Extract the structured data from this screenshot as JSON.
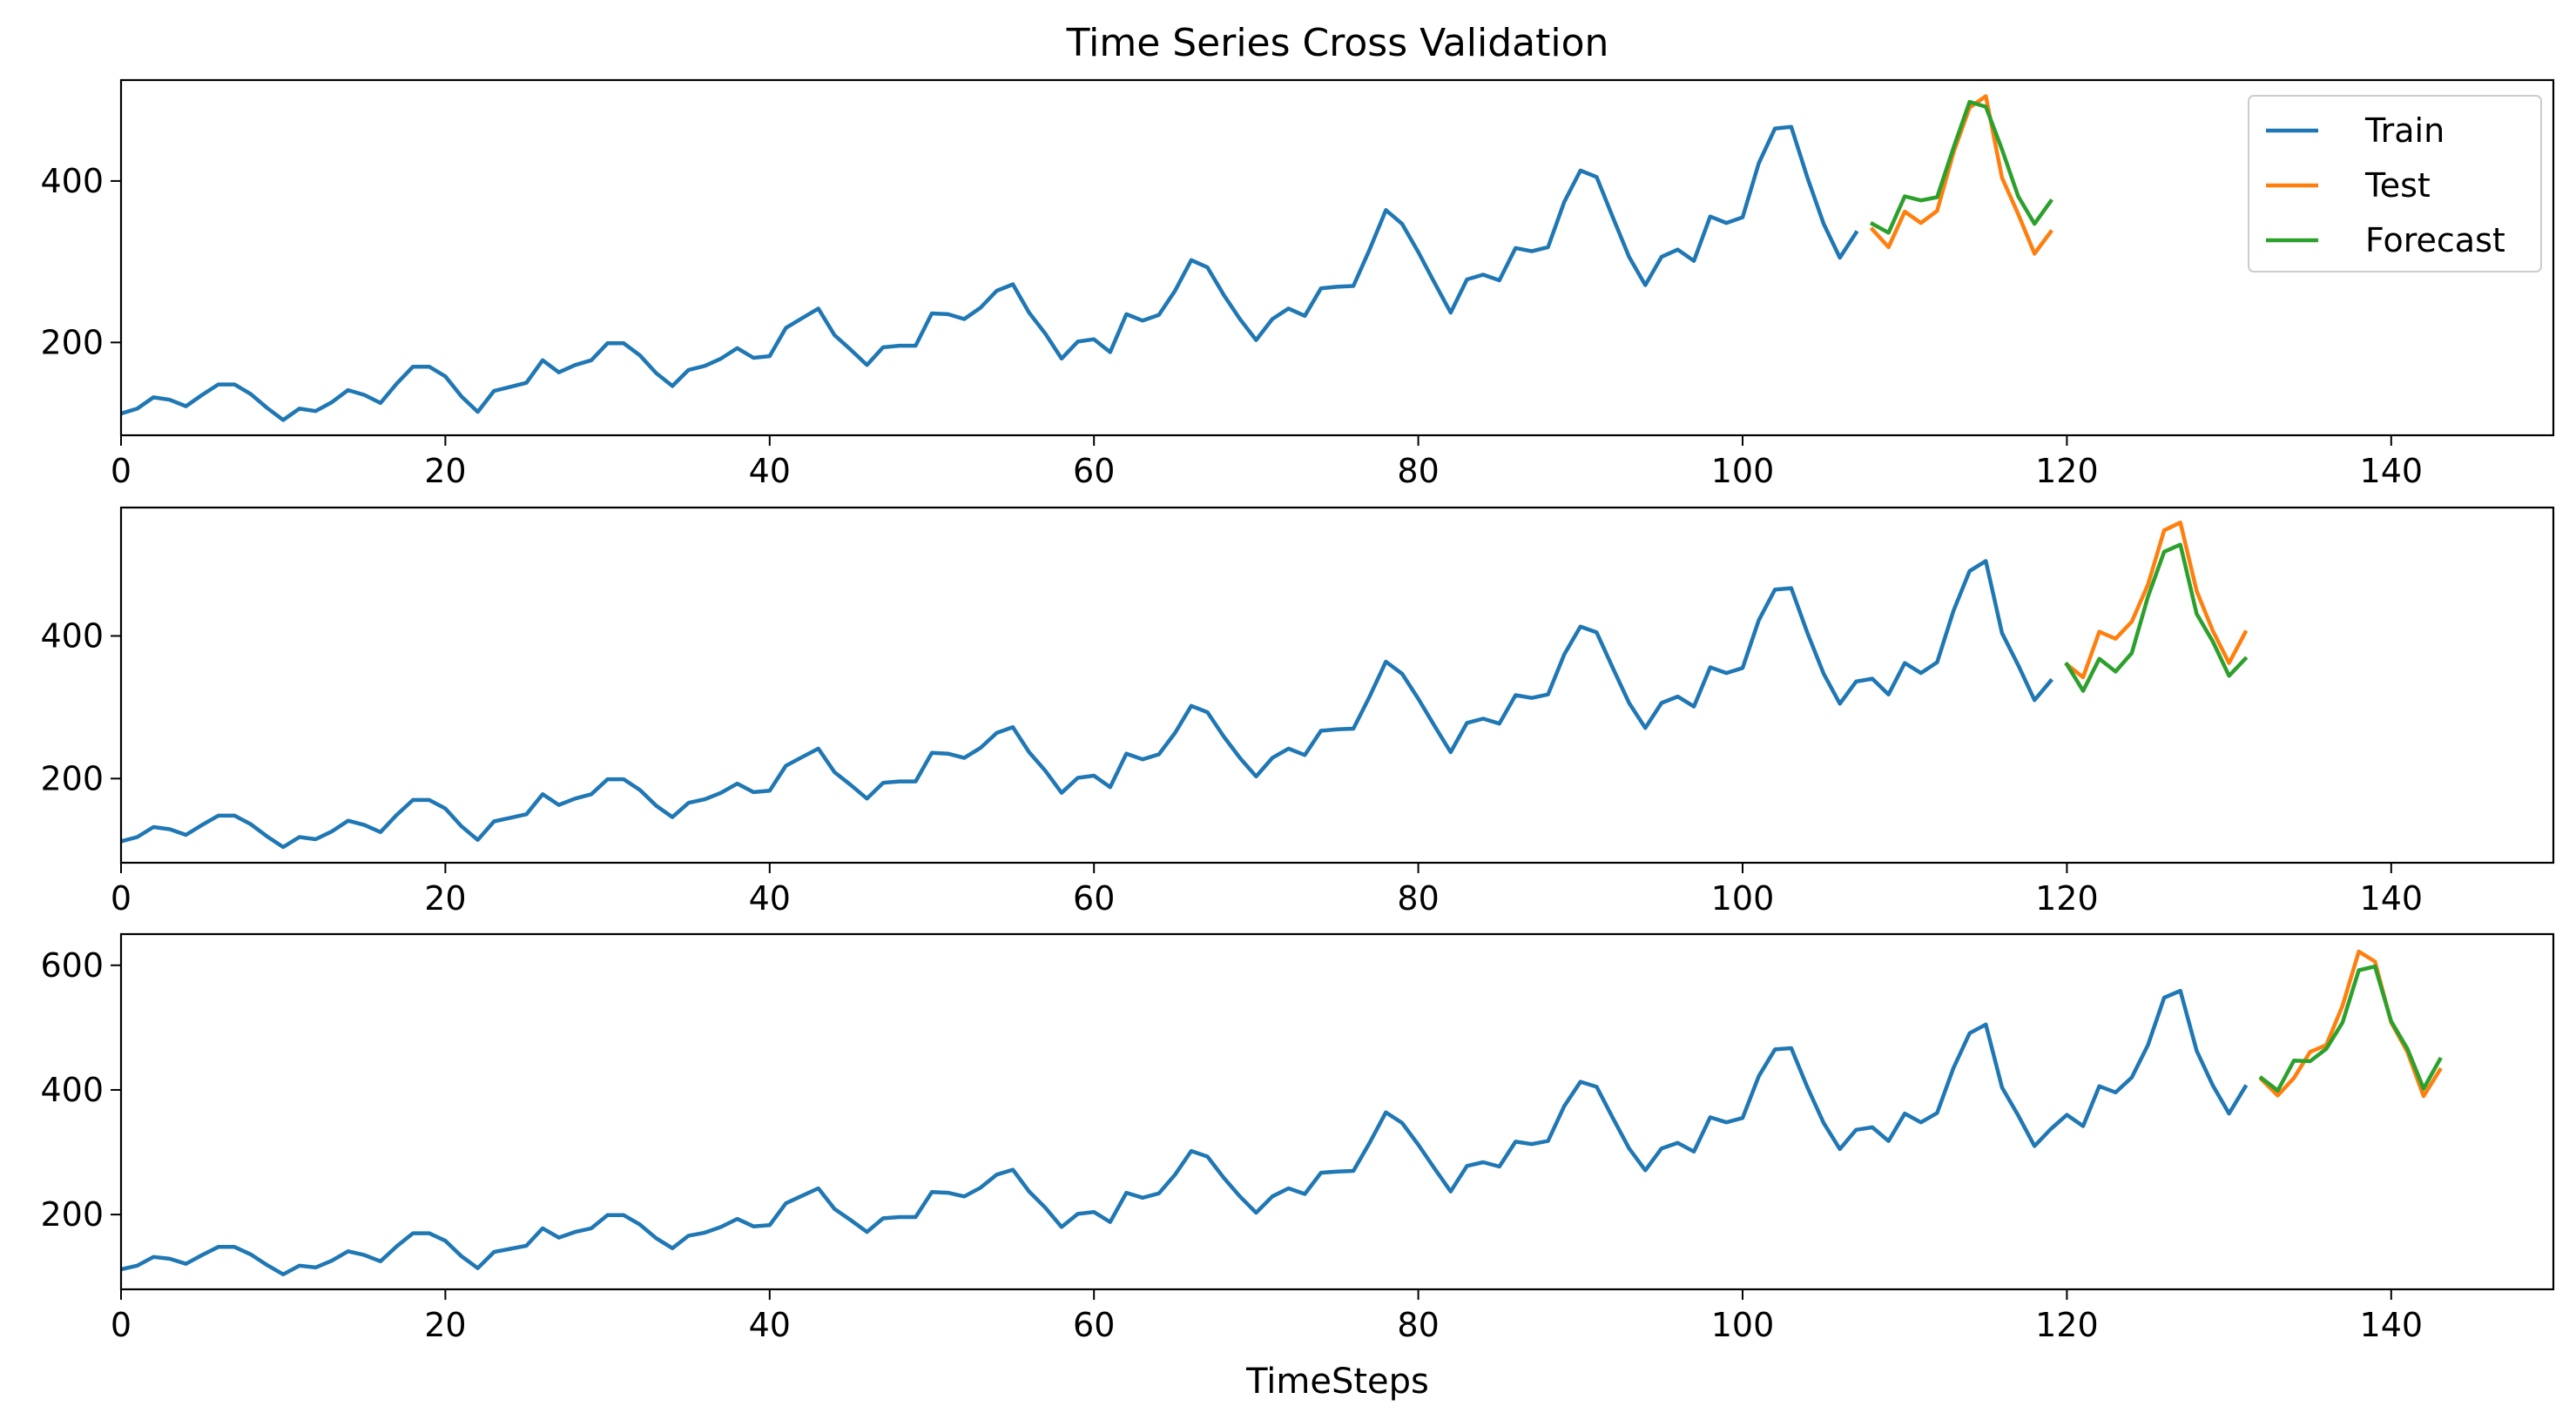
{
  "chart_data": {
    "type": "line",
    "title": "Time Series Cross Validation",
    "xlabel": "TimeSteps",
    "ylabel": "",
    "legend": {
      "placement": "top-right",
      "entries": [
        "Train",
        "Test",
        "Forecast"
      ]
    },
    "colors": {
      "Train": "#1f77b4",
      "Test": "#ff7f0e",
      "Forecast": "#2ca02c"
    },
    "xlim": [
      0,
      150
    ],
    "xticks": [
      0,
      20,
      40,
      60,
      80,
      100,
      120,
      140
    ],
    "grid": false,
    "values": [
      112,
      118,
      132,
      129,
      121,
      135,
      148,
      148,
      136,
      119,
      104,
      118,
      115,
      126,
      141,
      135,
      125,
      149,
      170,
      170,
      158,
      133,
      114,
      140,
      145,
      150,
      178,
      163,
      172,
      178,
      199,
      199,
      184,
      162,
      146,
      166,
      171,
      180,
      193,
      181,
      183,
      218,
      230,
      242,
      209,
      191,
      172,
      194,
      196,
      196,
      236,
      235,
      229,
      243,
      264,
      272,
      237,
      211,
      180,
      201,
      204,
      188,
      235,
      227,
      234,
      264,
      302,
      293,
      259,
      229,
      203,
      229,
      242,
      233,
      267,
      269,
      270,
      315,
      364,
      347,
      312,
      274,
      237,
      278,
      284,
      277,
      317,
      313,
      318,
      374,
      413,
      405,
      355,
      306,
      271,
      306,
      315,
      301,
      356,
      348,
      355,
      422,
      465,
      467,
      404,
      347,
      305,
      336,
      340,
      318,
      362,
      348,
      363,
      435,
      491,
      505,
      404,
      359,
      310,
      337,
      360,
      342,
      406,
      396,
      420,
      472,
      548,
      559,
      463,
      407,
      362,
      405,
      417,
      391,
      419,
      461,
      472,
      535,
      622,
      606,
      508,
      461,
      390,
      432
    ],
    "panels": [
      {
        "ylim": [
          85,
          525
        ],
        "yticks": [
          200,
          400
        ],
        "train_end": 108,
        "test_start": 108,
        "test_end": 120,
        "forecast": [
          347,
          336,
          381,
          376,
          380,
          441,
          498,
          492,
          439,
          381,
          347,
          375
        ]
      },
      {
        "ylim": [
          82,
          580
        ],
        "yticks": [
          200,
          400
        ],
        "train_end": 120,
        "test_start": 120,
        "test_end": 132,
        "forecast": [
          360,
          323,
          368,
          350,
          376,
          455,
          518,
          528,
          431,
          392,
          344,
          368
        ]
      },
      {
        "ylim": [
          80,
          650
        ],
        "yticks": [
          200,
          400,
          600
        ],
        "train_end": 132,
        "test_start": 132,
        "test_end": 144,
        "forecast": [
          419,
          399,
          447,
          446,
          466,
          508,
          592,
          598,
          510,
          466,
          402,
          449
        ]
      }
    ]
  }
}
